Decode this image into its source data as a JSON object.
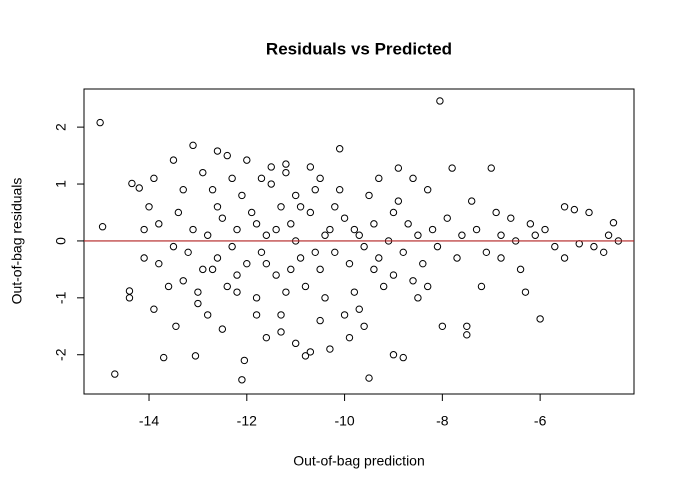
{
  "chart_data": {
    "type": "scatter",
    "title": "Residuals vs Predicted",
    "x_label": "Out-of-bag prediction",
    "y_label": "Out-of-bag residuals",
    "x": [
      -15.0,
      -14.95,
      -14.7,
      -14.4,
      -14.4,
      -14.35,
      -14.2,
      -14.1,
      -14.0,
      -13.9,
      -13.8,
      -13.7,
      -13.6,
      -13.5,
      -13.45,
      -13.3,
      -13.1,
      -13.05,
      -13.0,
      -12.9,
      -12.7,
      -12.6,
      -12.5,
      -12.4,
      -12.2,
      -12.1,
      -12.05,
      -12.0,
      -11.8,
      -11.6,
      -11.5,
      -11.3,
      -11.2,
      -11.0,
      -10.8,
      -10.7,
      -10.5,
      -10.3,
      -10.1,
      -9.9,
      -9.6,
      -9.5,
      -9.3,
      -9.0,
      -8.9,
      -8.8,
      -8.6,
      -8.5,
      -8.3,
      -8.05,
      -8.0,
      -7.8,
      -7.5,
      -7.5,
      -7.4,
      -7.2,
      -7.0,
      -6.9,
      -6.8,
      -6.6,
      -6.4,
      -6.2,
      -6.0,
      -5.9,
      -5.7,
      -5.5,
      -5.3,
      -5.2,
      -5.0,
      -4.9,
      -4.7,
      -4.6,
      -4.5,
      -4.4,
      -5.5,
      -6.3,
      -11.0,
      -11.1,
      -10.9,
      -10.7,
      -10.5,
      -11.3,
      -11.4,
      -10.3,
      -10.2,
      -11.6,
      -11.7,
      -10.0,
      -9.9,
      -11.9,
      -12.0,
      -9.7,
      -9.6,
      -12.2,
      -12.3,
      -9.4,
      -9.3,
      -12.5,
      -12.6,
      -9.1,
      -9.0,
      -12.8,
      -12.9,
      -8.8,
      -8.7,
      -13.1,
      -13.2,
      -8.5,
      -8.4,
      -13.4,
      -13.5,
      -8.2,
      -8.1,
      -7.9,
      -7.7,
      -7.6,
      -11.0,
      -10.8,
      -11.2,
      -10.6,
      -10.4,
      -11.5,
      -11.8,
      -10.1,
      -9.8,
      -12.1,
      -12.4,
      -9.5,
      -9.2,
      -12.7,
      -13.0,
      -8.9,
      -8.6,
      -11.1,
      -10.9,
      -10.6,
      -11.4,
      -10.4,
      -11.6,
      -10.2,
      -11.8,
      -9.8,
      -12.2,
      -9.4,
      -12.6,
      -9.0,
      -13.3,
      -8.3,
      -7.3,
      -7.1,
      -6.8,
      -6.5,
      -6.1,
      -13.8,
      -14.1,
      -13.9,
      -10.0,
      -11.2,
      -10.7,
      -11.7,
      -9.7,
      -12.3,
      -12.8,
      -10.5,
      -11.3
    ],
    "values": [
      2.08,
      0.25,
      -2.34,
      -0.88,
      -1.0,
      1.01,
      0.93,
      -0.3,
      0.6,
      1.1,
      0.3,
      -2.05,
      -0.8,
      1.42,
      -1.5,
      0.9,
      1.68,
      -2.02,
      -1.1,
      1.2,
      -0.5,
      1.58,
      -1.55,
      1.5,
      -0.9,
      -2.44,
      -2.1,
      1.42,
      -1.3,
      -1.7,
      1.3,
      -1.6,
      1.35,
      -1.8,
      -2.02,
      -1.95,
      1.1,
      -1.9,
      1.62,
      -1.7,
      -1.5,
      -2.41,
      1.1,
      -2.0,
      1.28,
      -2.05,
      1.1,
      -1.0,
      0.9,
      2.46,
      -1.5,
      1.28,
      -1.5,
      -1.65,
      0.7,
      -0.8,
      1.28,
      0.5,
      -0.3,
      0.4,
      -0.5,
      0.3,
      -1.37,
      0.2,
      -0.1,
      0.6,
      0.55,
      -0.05,
      0.5,
      -0.1,
      -0.2,
      0.1,
      0.32,
      0.0,
      -0.3,
      -0.9,
      0.0,
      0.3,
      -0.3,
      0.5,
      -0.5,
      0.6,
      -0.6,
      0.2,
      -0.2,
      0.1,
      -0.2,
      0.4,
      -0.4,
      0.5,
      -0.4,
      0.1,
      -0.1,
      0.2,
      -0.1,
      0.3,
      -0.3,
      0.4,
      -0.3,
      0.0,
      0.5,
      0.1,
      -0.5,
      -0.2,
      0.3,
      0.2,
      -0.2,
      0.1,
      -0.4,
      0.5,
      -0.1,
      0.2,
      -0.1,
      0.4,
      -0.3,
      0.1,
      0.8,
      -0.8,
      -0.9,
      0.9,
      -1.0,
      1.0,
      -1.0,
      0.9,
      -0.9,
      0.8,
      -0.8,
      0.8,
      -0.8,
      0.9,
      -0.9,
      0.7,
      -0.7,
      -0.5,
      0.6,
      -0.2,
      0.2,
      0.1,
      -0.4,
      0.6,
      0.3,
      0.2,
      -0.6,
      -0.5,
      0.6,
      -0.6,
      -0.7,
      -0.8,
      0.2,
      -0.2,
      0.1,
      0.0,
      0.1,
      -0.4,
      0.2,
      -1.2,
      -1.3,
      1.2,
      1.3,
      1.1,
      -1.2,
      1.1,
      -1.3,
      -1.4,
      -1.3
    ],
    "color": "#000000",
    "hline": {
      "value": 0,
      "color": "#b22222"
    },
    "xlim": [
      -15.33,
      -4.08
    ],
    "ylim": [
      -2.69,
      2.67
    ],
    "xticks": [
      -14,
      -12,
      -10,
      -8,
      -6
    ],
    "yticks": [
      -2,
      -1,
      0,
      1,
      2
    ]
  }
}
